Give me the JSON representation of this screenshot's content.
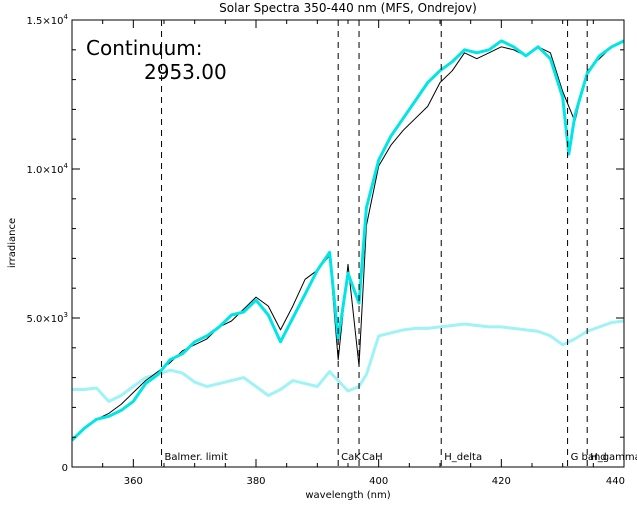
{
  "chart_data": {
    "type": "line",
    "title": "Solar Spectra 350-440 nm (MFS, Ondrejov)",
    "xlabel": "wavelength (nm)",
    "ylabel": "irradiance",
    "xlim": [
      350,
      440
    ],
    "ylim": [
      0,
      15000
    ],
    "x_ticks": [
      {
        "value": 360,
        "label": "360"
      },
      {
        "value": 380,
        "label": "380"
      },
      {
        "value": 400,
        "label": "400"
      },
      {
        "value": 420,
        "label": "420"
      },
      {
        "value": 440,
        "label": "440"
      }
    ],
    "y_ticks": [
      {
        "value": 0,
        "label": "0",
        "exp": ""
      },
      {
        "value": 5000,
        "label": "5.0×10",
        "exp": "3"
      },
      {
        "value": 10000,
        "label": "1.0×10",
        "exp": "4"
      },
      {
        "value": 15000,
        "label": "1.5×10",
        "exp": "4"
      }
    ],
    "annotation": {
      "label": "Continuum:",
      "value": "2953.00"
    },
    "reference_lines": [
      {
        "x": 364.6,
        "label": "Balmer. limit"
      },
      {
        "x": 393.4,
        "label": "CaK"
      },
      {
        "x": 396.8,
        "label": "CaH"
      },
      {
        "x": 410.2,
        "label": "H_delta"
      },
      {
        "x": 430.8,
        "label": "G band"
      },
      {
        "x": 434.0,
        "label": "H_gamma"
      }
    ],
    "series": [
      {
        "color": "#000000",
        "style": "thin-spiky",
        "x": [
          350,
          352,
          354,
          356,
          358,
          360,
          362,
          364,
          366,
          368,
          370,
          372,
          374,
          376,
          378,
          380,
          382,
          384,
          386,
          388,
          390,
          392,
          393.4,
          395,
          396.8,
          398,
          400,
          402,
          404,
          406,
          408,
          410,
          412,
          414,
          416,
          418,
          420,
          422,
          424,
          426,
          428,
          430,
          432,
          434,
          436,
          438,
          440
        ],
        "y": [
          900,
          1300,
          1600,
          1800,
          2100,
          2500,
          2900,
          3200,
          3500,
          3900,
          4100,
          4300,
          4700,
          4900,
          5300,
          5700,
          5400,
          4600,
          5400,
          6300,
          6600,
          7100,
          3600,
          6800,
          3400,
          8100,
          10100,
          10800,
          11300,
          11700,
          12100,
          12900,
          13300,
          13900,
          13700,
          13900,
          14100,
          14000,
          13800,
          14100,
          13900,
          12600,
          11600,
          13300,
          13700,
          14100,
          14300
        ]
      },
      {
        "color": "#00e5e5",
        "style": "thick-smoothed",
        "x": [
          350,
          352,
          354,
          356,
          358,
          360,
          362,
          364,
          366,
          368,
          370,
          372,
          374,
          376,
          378,
          380,
          382,
          384,
          386,
          388,
          390,
          392,
          393.4,
          395,
          396.8,
          398,
          400,
          402,
          404,
          406,
          408,
          410,
          412,
          414,
          416,
          418,
          420,
          422,
          424,
          426,
          428,
          430,
          431,
          432,
          434,
          436,
          438,
          440
        ],
        "y": [
          900,
          1300,
          1600,
          1700,
          1900,
          2200,
          2800,
          3100,
          3600,
          3800,
          4200,
          4400,
          4700,
          5100,
          5200,
          5600,
          5100,
          4200,
          5000,
          5800,
          6600,
          7200,
          4300,
          6500,
          5500,
          8700,
          10300,
          11100,
          11700,
          12300,
          12900,
          13300,
          13600,
          14000,
          13900,
          14000,
          14300,
          14100,
          13800,
          14100,
          13700,
          12400,
          10500,
          11800,
          13200,
          13800,
          14100,
          14300
        ]
      },
      {
        "color": "#9ff3f5",
        "style": "thick-continuum",
        "x": [
          350,
          352,
          354,
          356,
          358,
          360,
          362,
          364,
          366,
          368,
          370,
          372,
          374,
          376,
          378,
          380,
          382,
          384,
          386,
          388,
          390,
          392,
          393.4,
          395,
          396.8,
          398,
          400,
          402,
          404,
          406,
          408,
          410,
          412,
          414,
          416,
          418,
          420,
          422,
          424,
          426,
          428,
          430,
          432,
          434,
          436,
          438,
          440
        ],
        "y": [
          2600,
          2600,
          2650,
          2200,
          2400,
          2700,
          3000,
          3100,
          3250,
          3150,
          2850,
          2700,
          2800,
          2900,
          3000,
          2700,
          2400,
          2600,
          2900,
          2800,
          2700,
          3200,
          2900,
          2550,
          2700,
          3100,
          4400,
          4500,
          4600,
          4650,
          4650,
          4700,
          4750,
          4800,
          4750,
          4700,
          4700,
          4650,
          4600,
          4550,
          4400,
          4100,
          4300,
          4550,
          4700,
          4850,
          4900
        ]
      }
    ]
  }
}
